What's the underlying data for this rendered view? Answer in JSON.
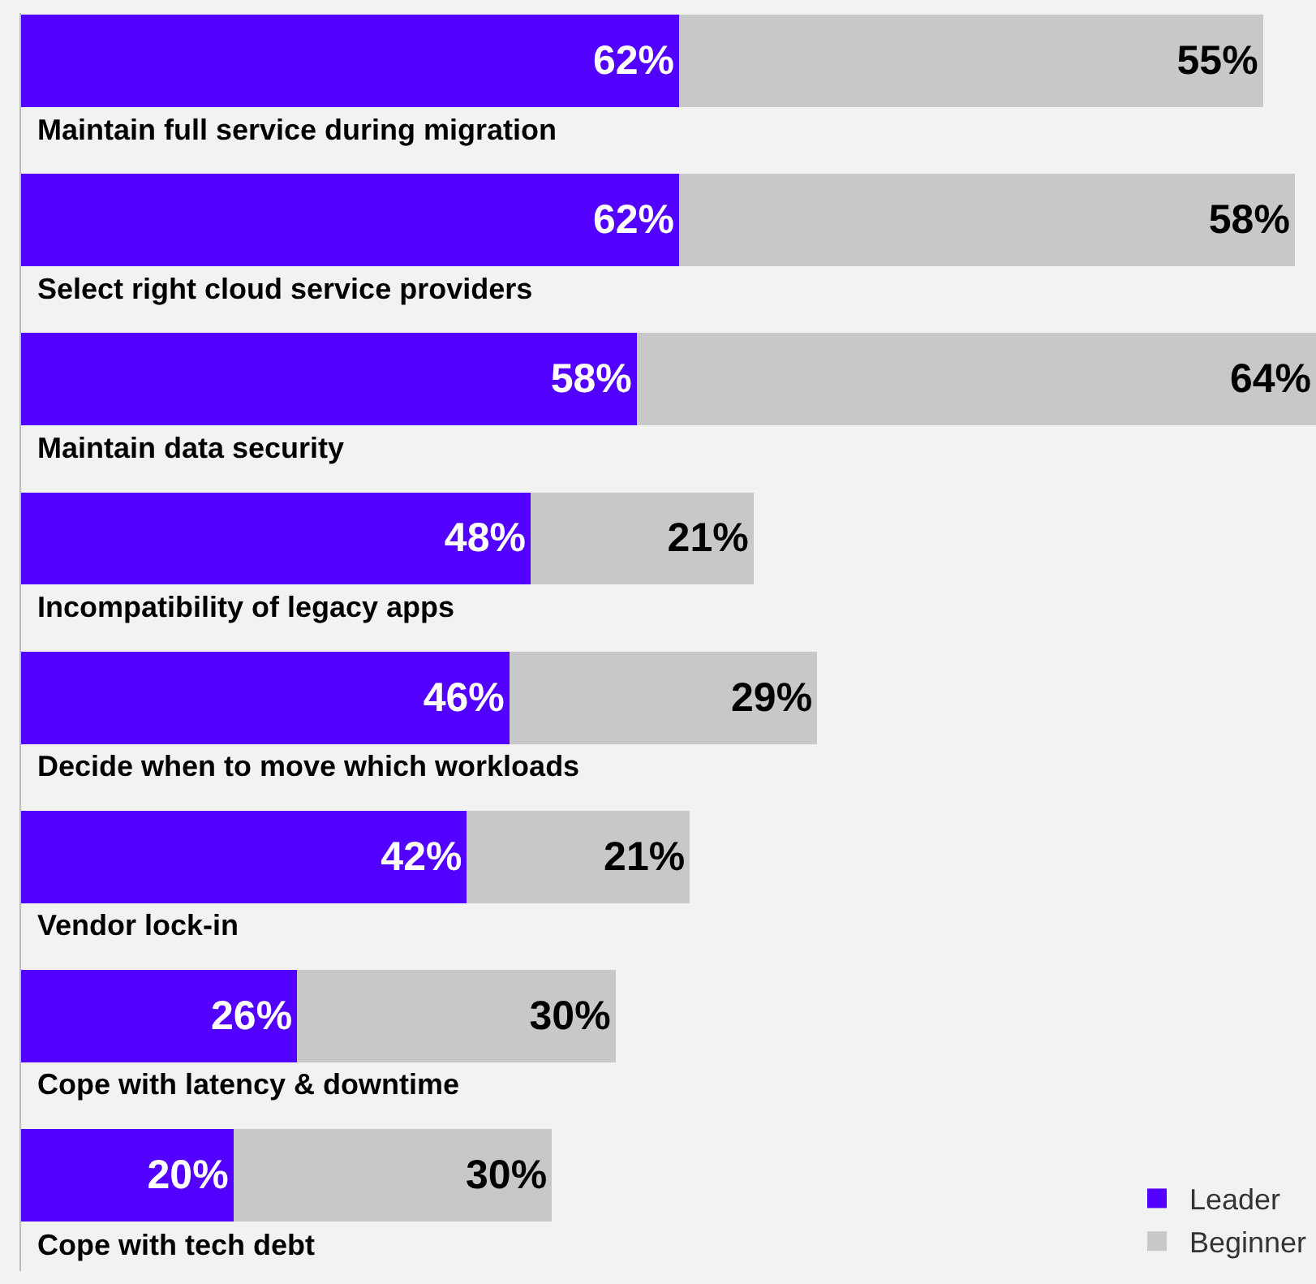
{
  "chart_data": {
    "type": "bar",
    "orientation": "horizontal",
    "stacked": true,
    "legend": "bottom right",
    "grid": false,
    "categories": [
      "Maintain full service during migration",
      "Select right cloud service providers",
      "Maintain data security",
      "Incompatibility of legacy apps",
      "Decide when to move which workloads",
      "Vendor lock-in",
      "Cope with latency & downtime",
      "Cope with tech debt"
    ],
    "series": [
      {
        "name": "Leader",
        "color": "#5200ff",
        "values": [
          62,
          62,
          58,
          48,
          46,
          42,
          26,
          20
        ],
        "value_labels": [
          "62%",
          "62%",
          "58%",
          "48%",
          "46%",
          "42%",
          "26%",
          "20%"
        ]
      },
      {
        "name": "Beginner",
        "color": "#c8c8c8",
        "values": [
          55,
          58,
          64,
          21,
          29,
          21,
          30,
          30
        ],
        "value_labels": [
          "55%",
          "58%",
          "64%",
          "21%",
          "29%",
          "21%",
          "30%",
          "30%"
        ]
      }
    ]
  }
}
